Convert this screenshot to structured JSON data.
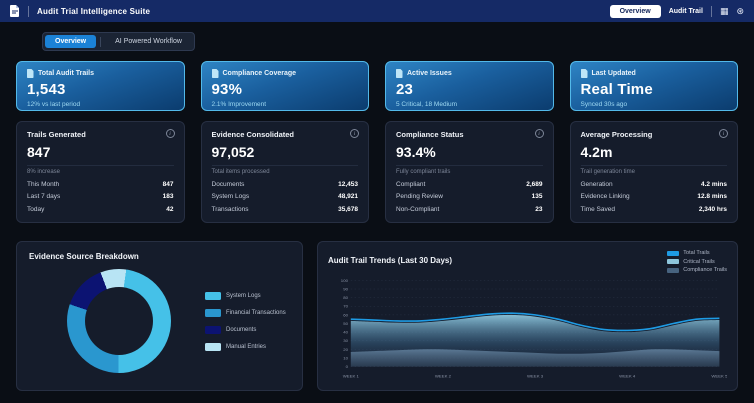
{
  "header": {
    "title": "Audit Trial Intelligence Suite",
    "nav_overview": "Overview",
    "nav_audit_trail": "Audit Trail"
  },
  "tabs": {
    "overview": "Overview",
    "ai_workflow": "AI Powered Workflow"
  },
  "kpi_cards": [
    {
      "label": "Total Audit Trails",
      "value": "1,543",
      "subtext": "12% vs last period"
    },
    {
      "label": "Compliance Coverage",
      "value": "93%",
      "subtext": "2.1% Improvement"
    },
    {
      "label": "Active Issues",
      "value": "23",
      "subtext": "5 Critical, 18 Medium"
    },
    {
      "label": "Last Updated",
      "value": "Real Time",
      "subtext": "Synced 30s ago"
    }
  ],
  "stat_cards": [
    {
      "title": "Trails Generated",
      "value": "847",
      "caption": "8% increase",
      "rows": [
        {
          "label": "This Month",
          "value": "847"
        },
        {
          "label": "Last 7 days",
          "value": "183"
        },
        {
          "label": "Today",
          "value": "42"
        }
      ]
    },
    {
      "title": "Evidence Consolidated",
      "value": "97,052",
      "caption": "Total items processed",
      "rows": [
        {
          "label": "Documents",
          "value": "12,453"
        },
        {
          "label": "System Logs",
          "value": "48,921"
        },
        {
          "label": "Transactions",
          "value": "35,678"
        }
      ]
    },
    {
      "title": "Compliance Status",
      "value": "93.4%",
      "caption": "Fully compliant trails",
      "rows": [
        {
          "label": "Compliant",
          "value": "2,689"
        },
        {
          "label": "Pending Review",
          "value": "135"
        },
        {
          "label": "Non-Compliant",
          "value": "23"
        }
      ]
    },
    {
      "title": "Average Processing",
      "value": "4.2m",
      "caption": "Trail generation time",
      "rows": [
        {
          "label": "Generation",
          "value": "4.2 mins"
        },
        {
          "label": "Evidence Linking",
          "value": "12.8 mins"
        },
        {
          "label": "Time Saved",
          "value": "2,340 hrs"
        }
      ]
    }
  ],
  "chart_data": [
    {
      "type": "pie",
      "donut": true,
      "title": "Evidence Source Breakdown",
      "labels": [
        "System Logs",
        "Financial Transactions",
        "Documents",
        "Manual Entries"
      ],
      "values": [
        48,
        30,
        14,
        8
      ],
      "colors": [
        "#45c1e8",
        "#2a97cf",
        "#0c1372",
        "#b8e4f4"
      ],
      "start_angle": 8,
      "legend_position": "right"
    },
    {
      "type": "area",
      "title": "Audit Trail Trends (Last 30 Days)",
      "x_labels": [
        "WEEK 1",
        "WEEK 2",
        "WEEK 3",
        "WEEK 4",
        "WEEK 5"
      ],
      "ylim": [
        0,
        100
      ],
      "ytick_step": 10,
      "grid": "dashed",
      "legend_position": "top-right",
      "series": [
        {
          "name": "Total Trails",
          "color": "#1e9be4",
          "style": "line",
          "values": [
            55,
            54,
            53,
            53,
            55,
            58,
            61,
            62,
            60,
            55,
            48,
            43,
            42,
            44,
            50,
            55,
            56
          ]
        },
        {
          "name": "Critical Trails",
          "color": "#8ec6dc",
          "style": "area",
          "values": [
            53,
            52,
            51,
            51,
            53,
            56,
            59,
            60,
            58,
            53,
            46,
            41,
            40,
            42,
            48,
            53,
            54
          ]
        },
        {
          "name": "Compliance Trails",
          "color": "#47637f",
          "style": "area",
          "values": [
            17,
            18,
            19,
            20,
            20,
            19,
            18,
            17,
            16,
            15,
            15,
            16,
            18,
            20,
            20,
            19,
            18
          ]
        }
      ]
    }
  ]
}
